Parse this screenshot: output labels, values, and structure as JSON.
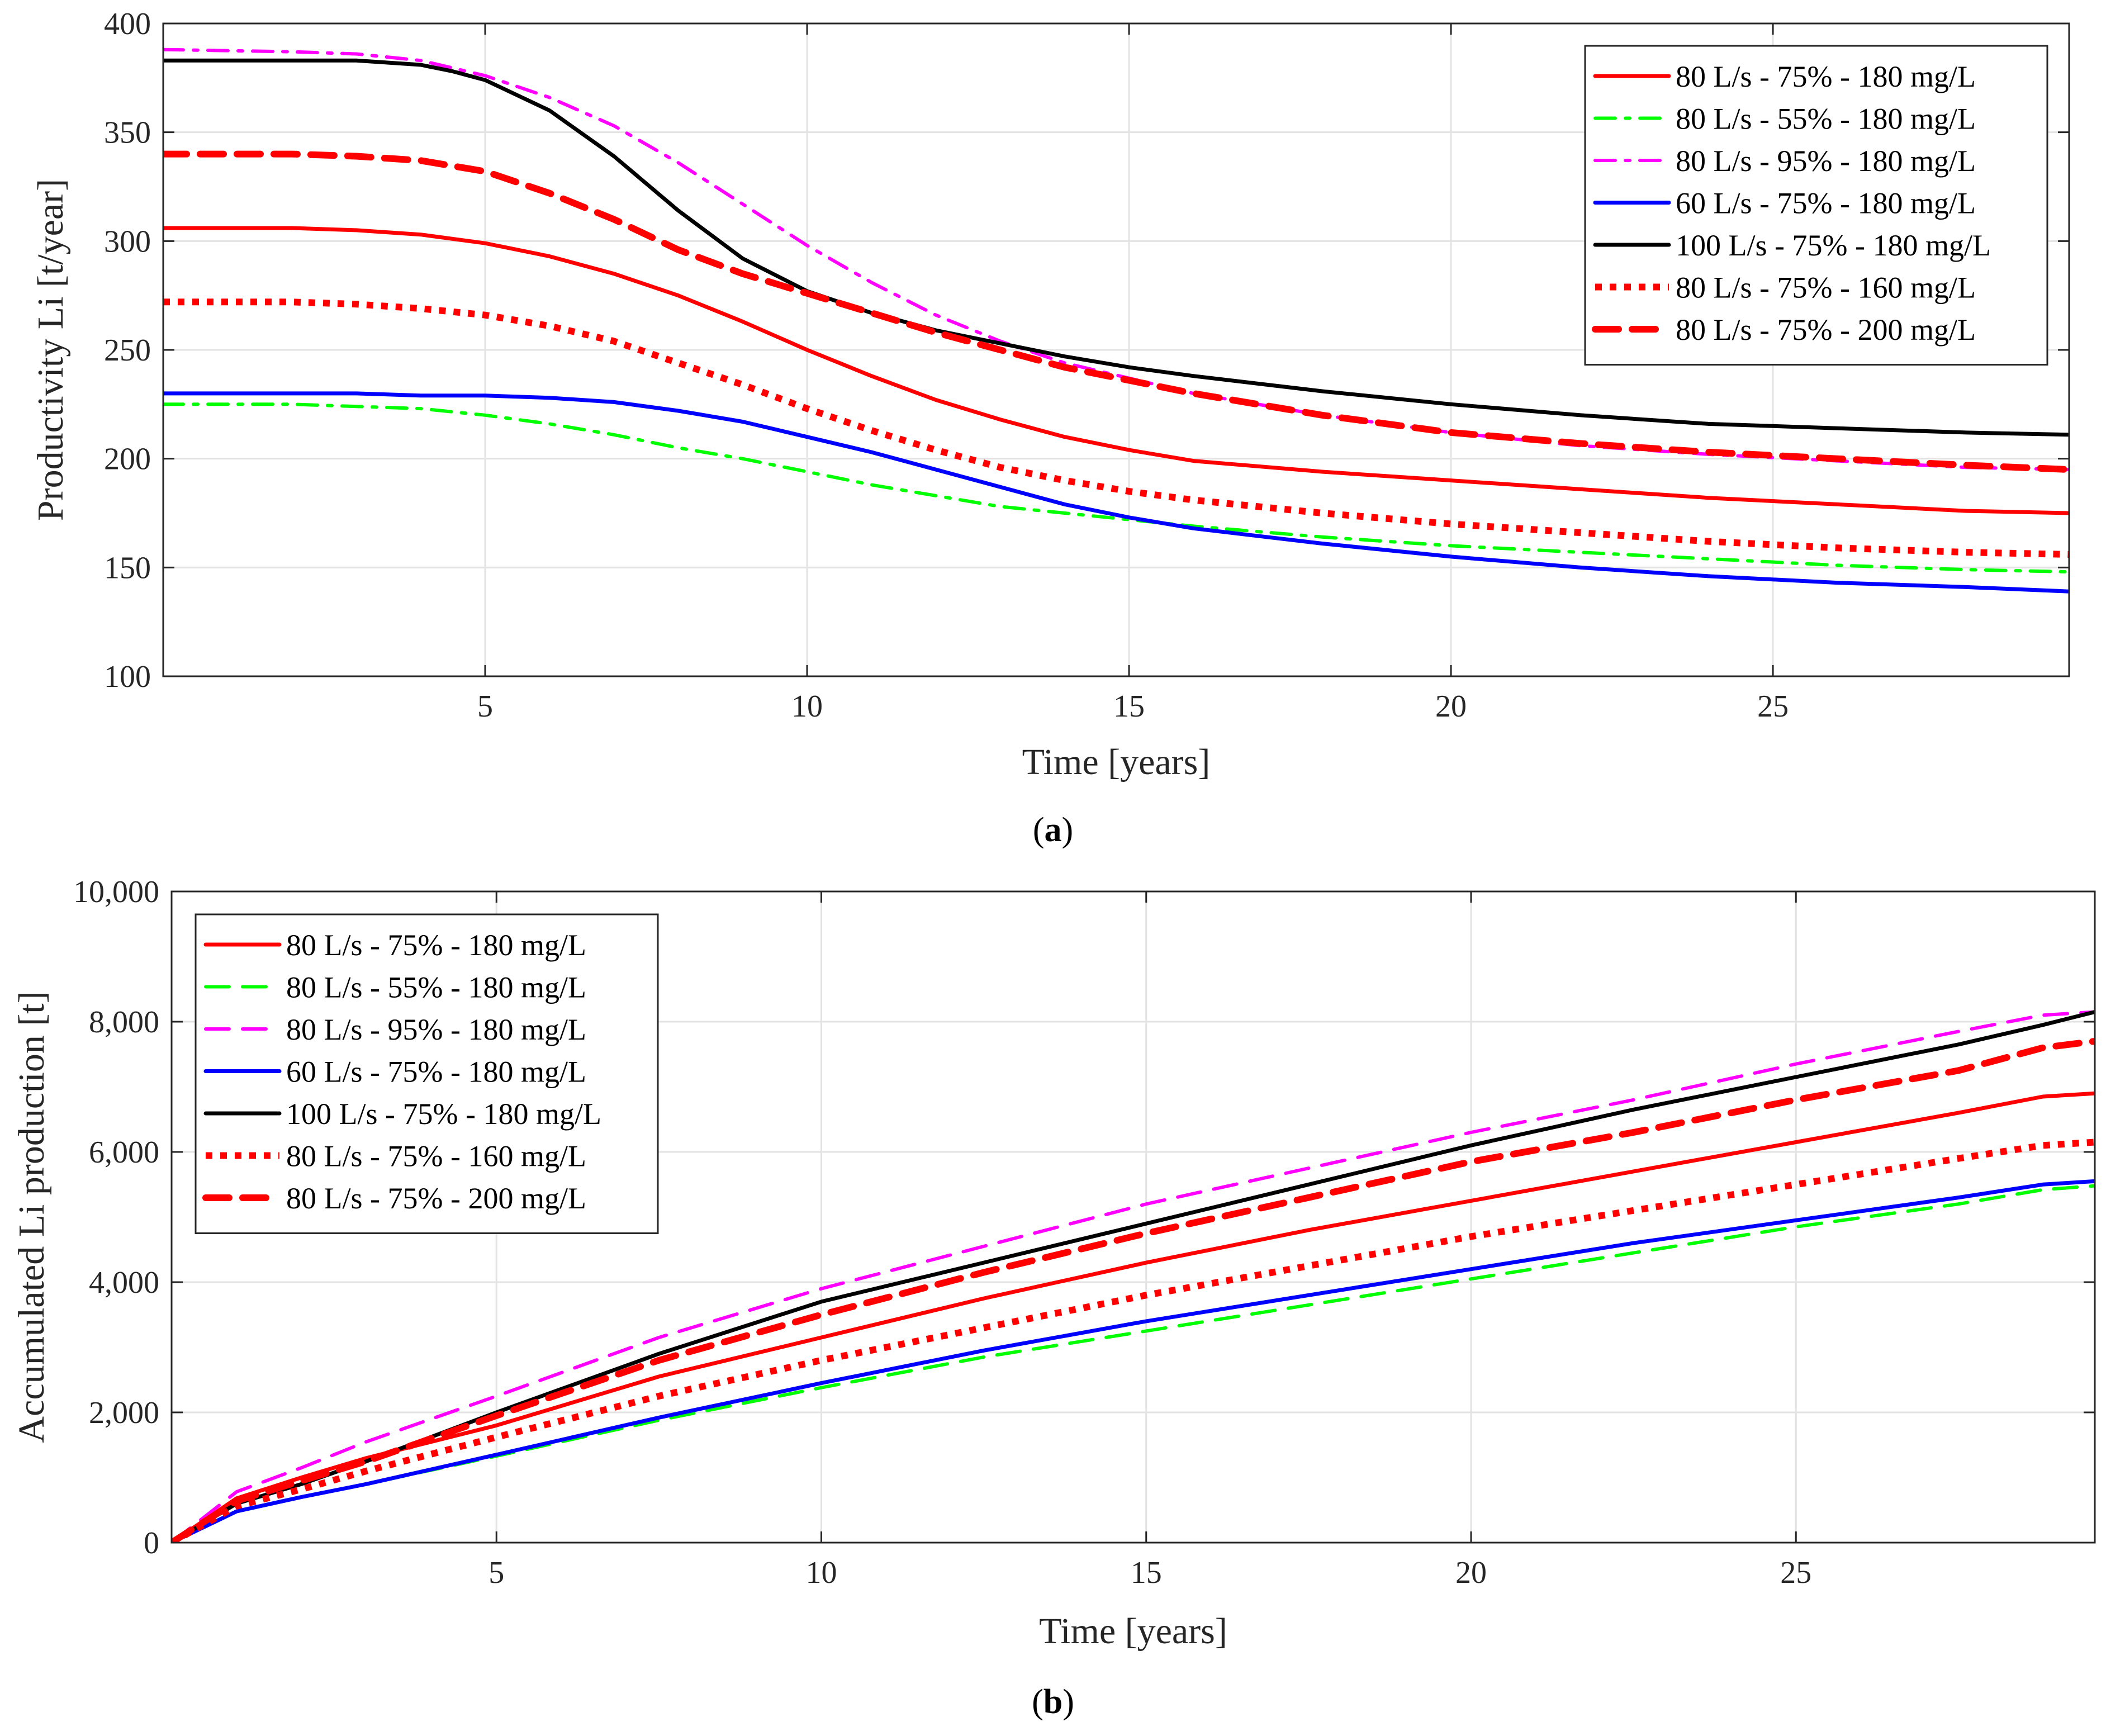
{
  "chart_data": [
    {
      "type": "line",
      "panel_label": "a",
      "title": "",
      "xlabel": "Time [years]",
      "ylabel": "Productivity Li [t/year]",
      "xlim": [
        0,
        29.6
      ],
      "ylim": [
        100,
        400
      ],
      "xticks": [
        5,
        10,
        15,
        20,
        25
      ],
      "xtick_labels": [
        "5",
        "10",
        "15",
        "20",
        "25"
      ],
      "yticks": [
        100,
        150,
        200,
        250,
        300,
        350,
        400
      ],
      "ytick_labels": [
        "100",
        "150",
        "200",
        "250",
        "300",
        "350",
        "400"
      ],
      "grid": true,
      "legend_position": "top-right",
      "series": [
        {
          "name": "80 L/s - 75% - 180 mg/L",
          "color": "#ff0000",
          "style": "solid",
          "width": 7,
          "x": [
            0,
            2,
            3,
            4,
            5,
            6,
            7,
            8,
            9,
            10,
            11,
            12,
            13,
            14,
            15,
            16,
            18,
            20,
            22,
            24,
            26,
            28,
            29.6
          ],
          "y": [
            306,
            306,
            305,
            303,
            299,
            293,
            285,
            275,
            263,
            250,
            238,
            227,
            218,
            210,
            204,
            199,
            194,
            190,
            186,
            182,
            179,
            176,
            175
          ]
        },
        {
          "name": "80 L/s - 55% - 180 mg/L",
          "color": "#00ff00",
          "style": "dashdot",
          "width": 6,
          "x": [
            0,
            2,
            3,
            4,
            5,
            6,
            7,
            8,
            9,
            10,
            11,
            12,
            13,
            14,
            15,
            16,
            18,
            20,
            22,
            24,
            26,
            28,
            29.6
          ],
          "y": [
            225,
            225,
            224,
            223,
            220,
            216,
            211,
            205,
            200,
            194,
            188,
            183,
            178,
            175,
            172,
            169,
            164,
            160,
            157,
            154,
            151,
            149,
            148
          ]
        },
        {
          "name": "80 L/s - 95% - 180 mg/L",
          "color": "#ff00ff",
          "style": "dashdot",
          "width": 6,
          "x": [
            0,
            2,
            3,
            4,
            5,
            6,
            7,
            8,
            9,
            10,
            11,
            12,
            13,
            14,
            15,
            16,
            18,
            20,
            22,
            24,
            26,
            28,
            29.6
          ],
          "y": [
            388,
            387,
            386,
            383,
            376,
            366,
            353,
            336,
            317,
            298,
            281,
            266,
            254,
            244,
            237,
            230,
            220,
            212,
            206,
            202,
            199,
            196,
            195
          ]
        },
        {
          "name": "60 L/s - 75% - 180 mg/L",
          "color": "#0000ff",
          "style": "solid",
          "width": 7,
          "x": [
            0,
            2,
            3,
            4,
            5,
            6,
            7,
            8,
            9,
            10,
            11,
            12,
            13,
            14,
            15,
            16,
            18,
            20,
            22,
            24,
            26,
            28,
            29.6
          ],
          "y": [
            230,
            230,
            230,
            229,
            229,
            228,
            226,
            222,
            217,
            210,
            203,
            195,
            187,
            179,
            173,
            168,
            161,
            155,
            150,
            146,
            143,
            141,
            139
          ]
        },
        {
          "name": "100 L/s - 75% - 180 mg/L",
          "color": "#000000",
          "style": "solid",
          "width": 7,
          "x": [
            0,
            2,
            3,
            4,
            4.5,
            5,
            6,
            7,
            8,
            9,
            10,
            11,
            12,
            13,
            14,
            15,
            16,
            18,
            20,
            22,
            24,
            26,
            28,
            29.6
          ],
          "y": [
            383,
            383,
            383,
            381,
            378,
            374,
            360,
            339,
            314,
            292,
            277,
            267,
            259,
            253,
            247,
            242,
            238,
            231,
            225,
            220,
            216,
            214,
            212,
            211
          ]
        },
        {
          "name": "80 L/s - 75% - 160 mg/L",
          "color": "#ff0000",
          "style": "dotted",
          "width": 12,
          "x": [
            0,
            2,
            3,
            4,
            5,
            6,
            7,
            8,
            9,
            10,
            11,
            12,
            13,
            14,
            15,
            16,
            18,
            20,
            22,
            24,
            26,
            28,
            29.6
          ],
          "y": [
            272,
            272,
            271,
            269,
            266,
            261,
            254,
            244,
            234,
            223,
            213,
            204,
            196,
            190,
            185,
            181,
            175,
            170,
            166,
            162,
            159,
            157,
            156
          ]
        },
        {
          "name": "80 L/s - 75% - 200 mg/L",
          "color": "#ff0000",
          "style": "dashed",
          "width": 12,
          "x": [
            0,
            2,
            3,
            4,
            5,
            6,
            7,
            8,
            9,
            10,
            11,
            12,
            13,
            14,
            15,
            16,
            18,
            20,
            22,
            24,
            26,
            28,
            29.6
          ],
          "y": [
            340,
            340,
            339,
            337,
            332,
            322,
            310,
            296,
            285,
            276,
            267,
            258,
            250,
            242,
            236,
            230,
            220,
            212,
            207,
            203,
            200,
            197,
            195
          ]
        }
      ]
    },
    {
      "type": "line",
      "panel_label": "b",
      "title": "",
      "xlabel": "Time [years]",
      "ylabel": "Accumulated Li production [t]",
      "xlim": [
        0,
        29.6
      ],
      "ylim": [
        0,
        10000
      ],
      "xticks": [
        5,
        10,
        15,
        20,
        25
      ],
      "xtick_labels": [
        "5",
        "10",
        "15",
        "20",
        "25"
      ],
      "yticks": [
        0,
        2000,
        4000,
        6000,
        8000,
        10000
      ],
      "ytick_labels": [
        "0",
        "2,000",
        "4,000",
        "6,000",
        "8,000",
        "10,000"
      ],
      "grid": true,
      "legend_position": "top-left",
      "series": [
        {
          "name": "80 L/s - 75% - 180 mg/L",
          "color": "#ff0000",
          "style": "solid",
          "width": 7,
          "x": [
            0,
            1,
            2,
            3,
            5,
            7.5,
            10,
            12.5,
            15,
            17.5,
            20,
            22.5,
            25,
            27.5,
            28.8,
            29.6
          ],
          "y": [
            0,
            680,
            1000,
            1300,
            1800,
            2550,
            3150,
            3750,
            4300,
            4800,
            5250,
            5700,
            6150,
            6600,
            6850,
            6900
          ]
        },
        {
          "name": "80 L/s - 55% - 180 mg/L",
          "color": "#00ff00",
          "style": "dashed",
          "width": 6,
          "x": [
            0,
            1,
            2,
            3,
            5,
            7.5,
            10,
            12.5,
            15,
            17.5,
            20,
            22.5,
            25,
            27.5,
            28.8,
            29.6
          ],
          "y": [
            0,
            480,
            700,
            900,
            1330,
            1880,
            2380,
            2850,
            3250,
            3650,
            4050,
            4450,
            4850,
            5200,
            5420,
            5480
          ]
        },
        {
          "name": "80 L/s - 95% - 180 mg/L",
          "color": "#ff00ff",
          "style": "dashed",
          "width": 6,
          "x": [
            0,
            1,
            2,
            3,
            5,
            7.5,
            10,
            12.5,
            15,
            17.5,
            20,
            22.5,
            25,
            27.5,
            28.8,
            29.6
          ],
          "y": [
            0,
            780,
            1150,
            1550,
            2250,
            3150,
            3900,
            4550,
            5200,
            5750,
            6300,
            6800,
            7350,
            7850,
            8100,
            8150
          ]
        },
        {
          "name": "60 L/s - 75% - 180 mg/L",
          "color": "#0000ff",
          "style": "solid",
          "width": 7,
          "x": [
            0,
            1,
            2,
            3,
            5,
            7.5,
            10,
            12.5,
            15,
            17.5,
            20,
            22.5,
            25,
            27.5,
            28.8,
            29.6
          ],
          "y": [
            0,
            480,
            700,
            900,
            1350,
            1920,
            2450,
            2950,
            3400,
            3800,
            4200,
            4600,
            4950,
            5300,
            5500,
            5550
          ]
        },
        {
          "name": "100 L/s - 75% - 180 mg/L",
          "color": "#000000",
          "style": "solid",
          "width": 7,
          "x": [
            0,
            1,
            2,
            3,
            5,
            7.5,
            10,
            12.5,
            15,
            17.5,
            20,
            22.5,
            25,
            27.5,
            28.8,
            29.6
          ],
          "y": [
            0,
            600,
            900,
            1250,
            2000,
            2900,
            3700,
            4300,
            4900,
            5500,
            6100,
            6650,
            7150,
            7650,
            7950,
            8150
          ]
        },
        {
          "name": "80 L/s - 75% - 160 mg/L",
          "color": "#ff0000",
          "style": "dotted",
          "width": 12,
          "x": [
            0,
            1,
            2,
            3,
            5,
            7.5,
            10,
            12.5,
            15,
            17.5,
            20,
            22.5,
            25,
            27.5,
            28.8,
            29.6
          ],
          "y": [
            0,
            560,
            820,
            1100,
            1620,
            2250,
            2800,
            3300,
            3800,
            4250,
            4700,
            5100,
            5500,
            5900,
            6100,
            6150
          ]
        },
        {
          "name": "80 L/s - 75% - 200 mg/L",
          "color": "#ff0000",
          "style": "dashed",
          "width": 12,
          "x": [
            0,
            1,
            2,
            3,
            5,
            7.5,
            10,
            12.5,
            15,
            17.5,
            20,
            22.5,
            25,
            27.5,
            28.8,
            29.6
          ],
          "y": [
            0,
            640,
            950,
            1250,
            1950,
            2800,
            3500,
            4150,
            4750,
            5300,
            5850,
            6300,
            6800,
            7250,
            7600,
            7700
          ]
        }
      ]
    }
  ]
}
